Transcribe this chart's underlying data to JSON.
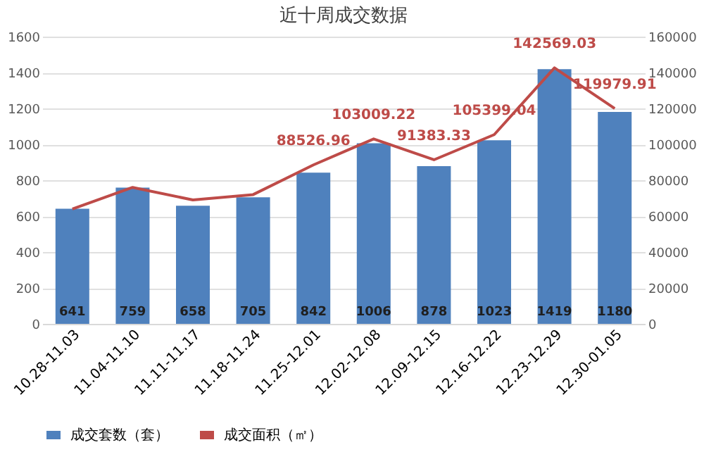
{
  "chart_data": {
    "type": "bar",
    "title": "近十周成交数据",
    "categories": [
      "10.28-11.03",
      "11.04-11.10",
      "11.11-11.17",
      "11.18-11.24",
      "11.25-12.01",
      "12.02-12.08",
      "12.09-12.15",
      "12.16-12.22",
      "12.23-12.29",
      "12.30-01.05"
    ],
    "series": [
      {
        "name": "成交套数（套）",
        "color": "#4f81bd",
        "values": [
          641,
          759,
          658,
          705,
          842,
          1006,
          878,
          1023,
          1419,
          1180
        ],
        "data_labels": true
      },
      {
        "name": "成交面积（㎡）",
        "type": "line",
        "axis": "y2",
        "color": "#be4b48",
        "values": [
          64000,
          76000,
          69000,
          72000,
          88526.96,
          103009.22,
          91383.33,
          105399.04,
          142569.03,
          119979.91
        ],
        "value_labels": [
          null,
          null,
          null,
          null,
          "88526.96",
          "103009.22",
          "91383.33",
          "105399.04",
          "142569.03",
          "119979.91"
        ]
      }
    ],
    "ylim": [
      0,
      1600
    ],
    "yticks": [
      0,
      200,
      400,
      600,
      800,
      1000,
      1200,
      1400,
      1600
    ],
    "y2lim": [
      0,
      160000
    ],
    "y2ticks": [
      0,
      20000,
      40000,
      60000,
      80000,
      100000,
      120000,
      140000,
      160000
    ],
    "grid": "y",
    "legend": "bottom",
    "marker": "none"
  }
}
